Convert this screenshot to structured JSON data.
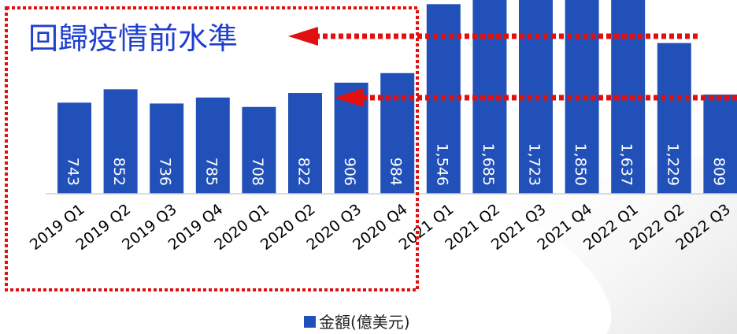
{
  "chart_data": {
    "type": "bar",
    "categories": [
      "2019 Q1",
      "2019 Q2",
      "2019 Q3",
      "2019 Q4",
      "2020 Q1",
      "2020 Q2",
      "2020 Q3",
      "2020 Q4",
      "2021 Q1",
      "2021 Q2",
      "2021 Q3",
      "2021 Q4",
      "2022 Q1",
      "2022 Q2",
      "2022 Q3"
    ],
    "series": [
      {
        "name": "金額(億美元)",
        "values": [
          743,
          852,
          736,
          785,
          708,
          822,
          906,
          984,
          1546,
          1685,
          1723,
          1850,
          1637,
          1229,
          809
        ],
        "value_labels": [
          "743",
          "852",
          "736",
          "785",
          "708",
          "822",
          "906",
          "984",
          "1,546",
          "1,685",
          "1,723",
          "1,850",
          "1,637",
          "1,229",
          "809"
        ]
      }
    ],
    "annotation": "回歸疫情前水準",
    "legend_position": "bottom",
    "grid": false,
    "colors": {
      "bar": "#2151b8",
      "bar_label": "#ffffff",
      "annotation_text": "#1f3fd0",
      "annotation_marks": "#e01010",
      "axis": "#d0d0d0",
      "tick_text": "#000000"
    }
  }
}
